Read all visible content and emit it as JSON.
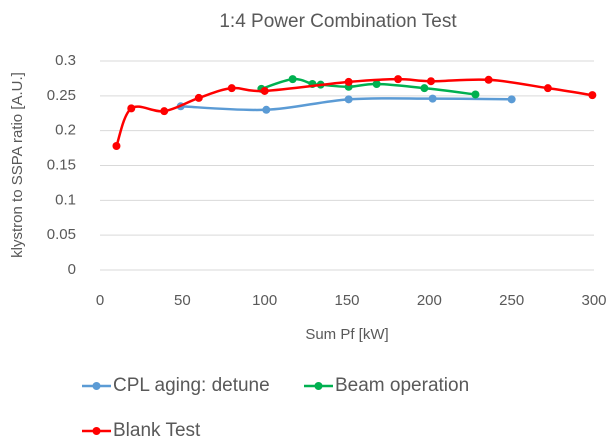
{
  "chart_data": {
    "type": "line",
    "smooth": true,
    "title": "1:4 Power Combination Test",
    "x_label": "Sum Pf [kW]",
    "y_label": "klystron to SSPA ratio [A.U.]",
    "xlim": [
      0,
      300
    ],
    "xticks": [
      0,
      50,
      100,
      150,
      200,
      250,
      300
    ],
    "ylim": [
      0,
      0.3
    ],
    "yticks": [
      0,
      0.05,
      0.1,
      0.15,
      0.2,
      0.25,
      0.3
    ],
    "grid": true,
    "series": [
      {
        "name": "CPL aging: detune",
        "color": "#5b9bd5",
        "x": [
          49,
          101,
          151,
          202,
          250
        ],
        "values": [
          0.235,
          0.23,
          0.245,
          0.246,
          0.245
        ]
      },
      {
        "name": "Beam operation",
        "color": "#00b050",
        "x": [
          98,
          117,
          129,
          134,
          151,
          168,
          197,
          228
        ],
        "values": [
          0.26,
          0.274,
          0.267,
          0.266,
          0.263,
          0.267,
          0.261,
          0.252
        ]
      },
      {
        "name": "Blank Test",
        "color": "#ff0000",
        "x": [
          10,
          19,
          39,
          60,
          80,
          100,
          151,
          181,
          201,
          236,
          272,
          299
        ],
        "values": [
          0.178,
          0.232,
          0.228,
          0.247,
          0.261,
          0.257,
          0.27,
          0.274,
          0.271,
          0.273,
          0.261,
          0.251
        ]
      }
    ]
  }
}
